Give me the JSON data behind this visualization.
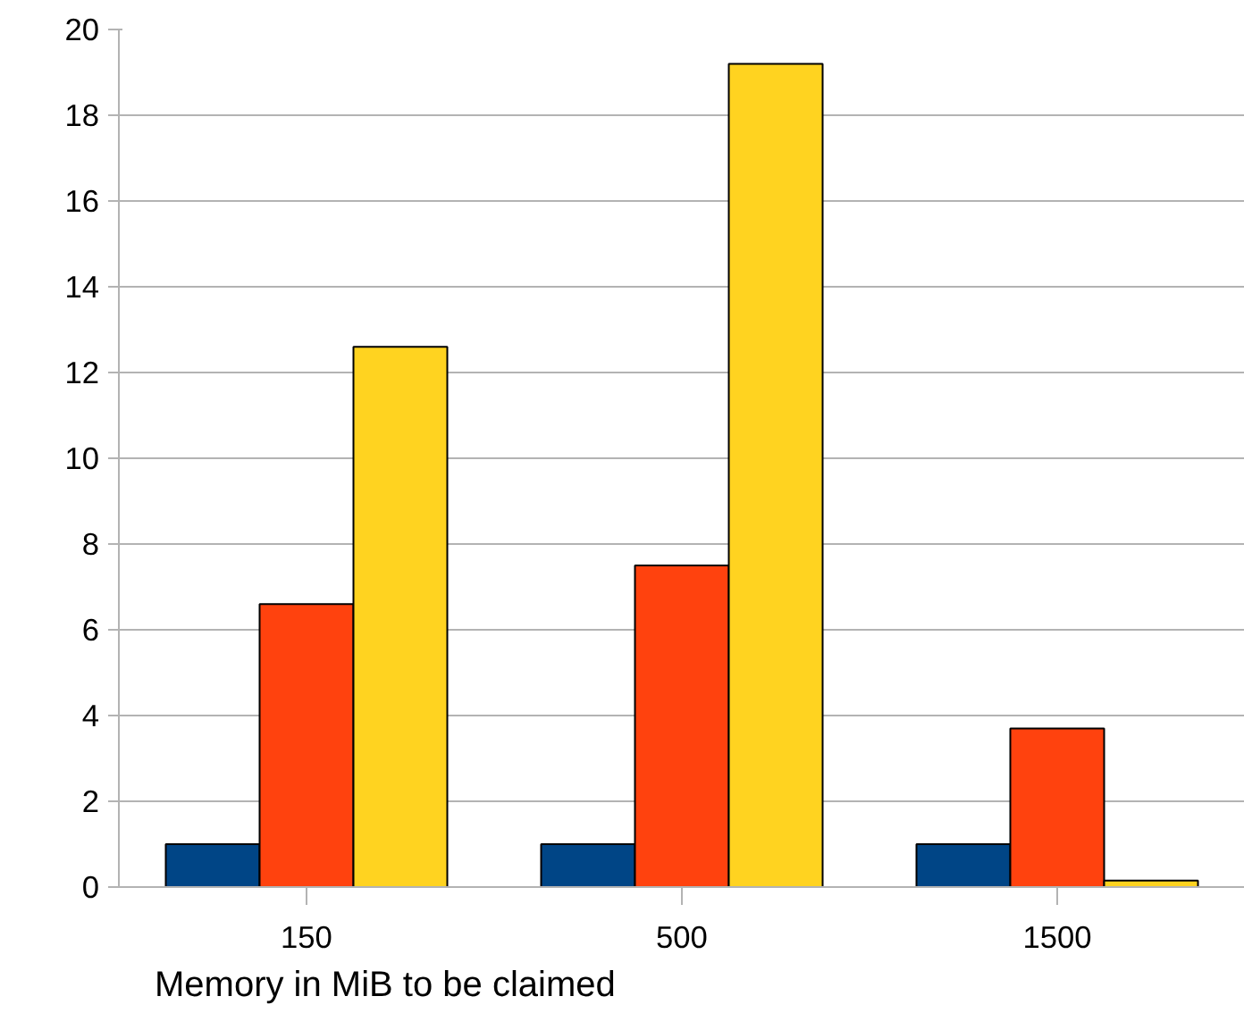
{
  "chart_data": {
    "type": "bar",
    "categories": [
      "150",
      "500",
      "1500"
    ],
    "xlabel": "Memory in MiB to be claimed",
    "series": [
      {
        "color": "#004586",
        "values": [
          1,
          1,
          1
        ]
      },
      {
        "color": "#ff420e",
        "values": [
          6.6,
          7.5,
          3.7
        ]
      },
      {
        "color": "#ffd320",
        "values": [
          12.6,
          19.2,
          0.15
        ]
      }
    ],
    "ylim": [
      0,
      20
    ],
    "yticks": [
      0,
      2,
      4,
      6,
      8,
      10,
      12,
      14,
      16,
      18,
      20
    ],
    "grid": "y"
  }
}
